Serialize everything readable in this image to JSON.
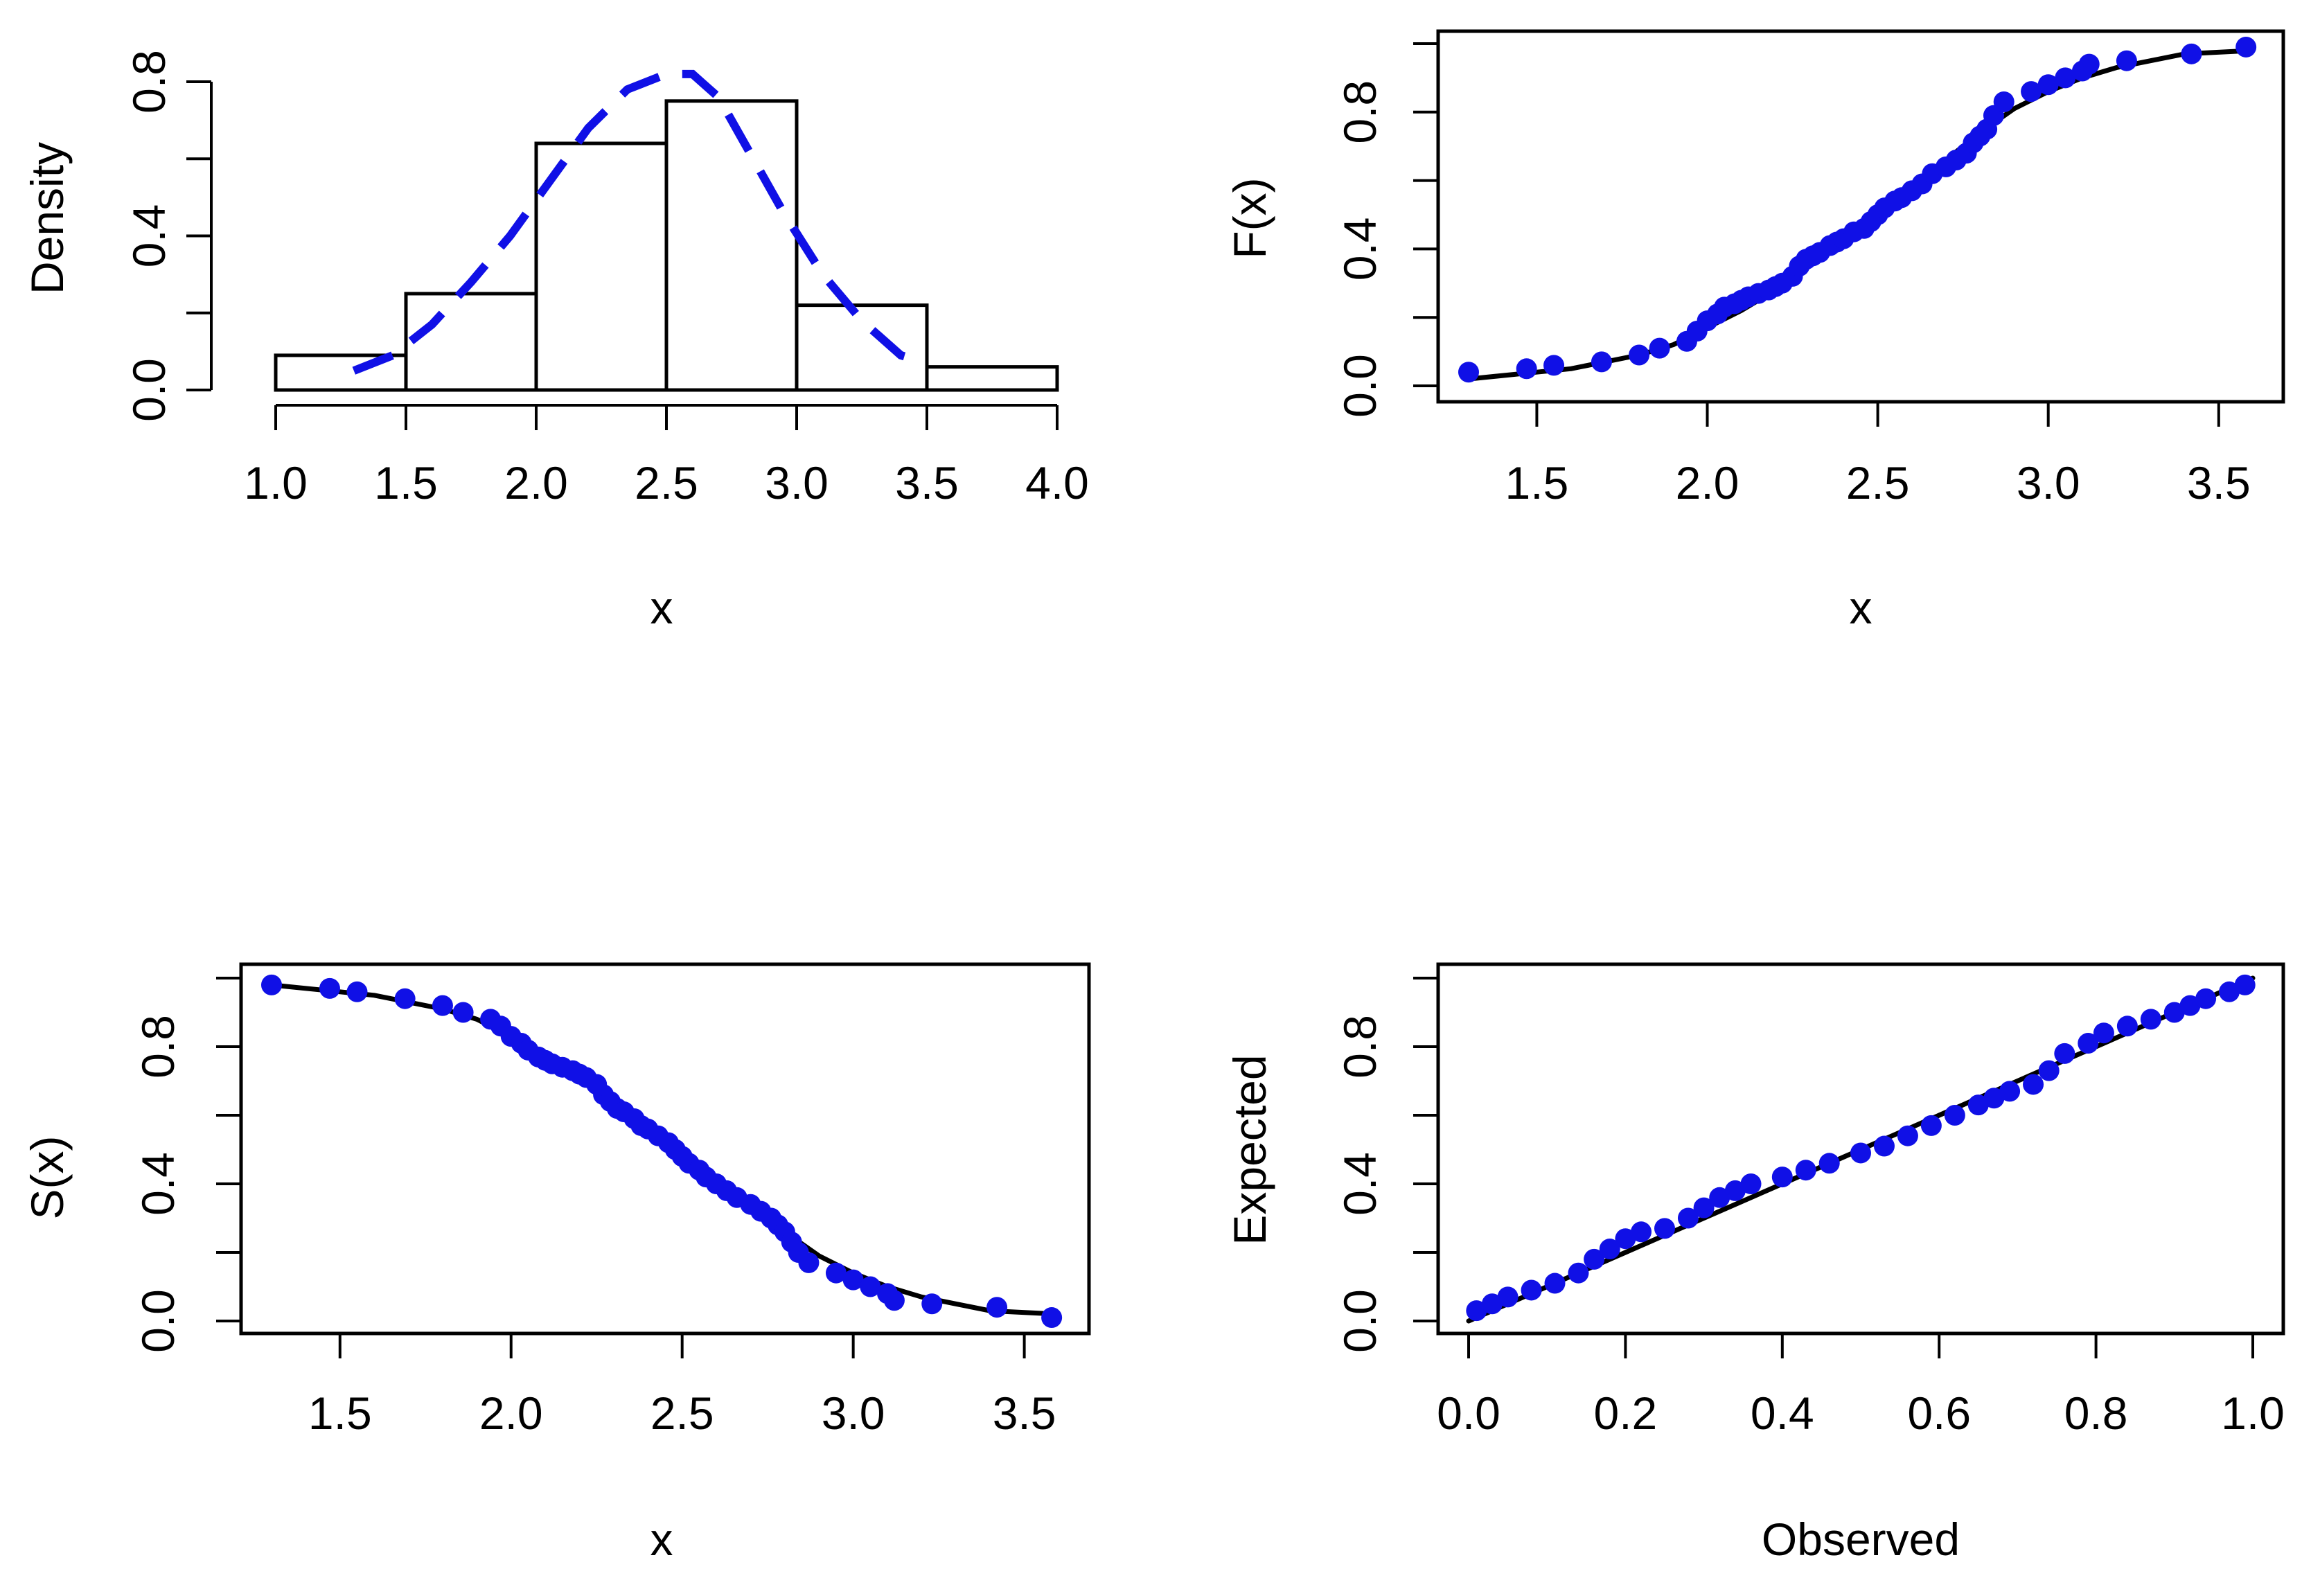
{
  "chart_data": [
    {
      "id": "hist",
      "type": "bar",
      "xlabel": "x",
      "ylabel": "Density",
      "xlim": [
        1.0,
        4.0
      ],
      "ylim": [
        0.0,
        0.8
      ],
      "xticks": [
        "1.0",
        "1.5",
        "2.0",
        "2.5",
        "3.0",
        "3.5",
        "4.0"
      ],
      "yticks": [
        "0.0",
        "0.4",
        "0.8"
      ],
      "bins": [
        [
          1.0,
          1.5
        ],
        [
          1.5,
          2.0
        ],
        [
          2.0,
          2.5
        ],
        [
          2.5,
          3.0
        ],
        [
          3.0,
          3.5
        ],
        [
          3.5,
          4.0
        ]
      ],
      "values": [
        0.09,
        0.25,
        0.64,
        0.75,
        0.22,
        0.06
      ],
      "density_curve": {
        "style": "dashed",
        "color": "#1010e6",
        "x": [
          1.3,
          1.45,
          1.6,
          1.75,
          1.9,
          2.05,
          2.2,
          2.35,
          2.5,
          2.6,
          2.7,
          2.8,
          2.95,
          3.1,
          3.25,
          3.4,
          3.5
        ],
        "y": [
          0.05,
          0.09,
          0.17,
          0.28,
          0.4,
          0.54,
          0.68,
          0.78,
          0.82,
          0.82,
          0.76,
          0.64,
          0.46,
          0.3,
          0.18,
          0.09,
          0.07
        ]
      }
    },
    {
      "id": "cdf",
      "type": "scatter",
      "xlabel": "x",
      "ylabel": "F(x)",
      "xlim": [
        1.3,
        3.6
      ],
      "ylim": [
        0.0,
        1.0
      ],
      "xticks": [
        "1.5",
        "2.0",
        "2.5",
        "3.0",
        "3.5"
      ],
      "yticks": [
        "0.0",
        "0.4",
        "0.8"
      ],
      "point_color": "#1010e6",
      "points": {
        "x": [
          1.3,
          1.47,
          1.55,
          1.69,
          1.8,
          1.86,
          1.94,
          1.97,
          2.0,
          2.03,
          2.05,
          2.08,
          2.1,
          2.12,
          2.15,
          2.18,
          2.2,
          2.22,
          2.25,
          2.27,
          2.29,
          2.31,
          2.33,
          2.36,
          2.38,
          2.4,
          2.43,
          2.46,
          2.48,
          2.5,
          2.52,
          2.55,
          2.57,
          2.6,
          2.63,
          2.66,
          2.7,
          2.73,
          2.76,
          2.78,
          2.8,
          2.82,
          2.84,
          2.87,
          2.95,
          3.0,
          3.05,
          3.1,
          3.12,
          3.23,
          3.42,
          3.58
        ],
        "y": [
          0.04,
          0.05,
          0.06,
          0.07,
          0.09,
          0.11,
          0.13,
          0.16,
          0.19,
          0.21,
          0.23,
          0.24,
          0.25,
          0.26,
          0.27,
          0.28,
          0.29,
          0.3,
          0.32,
          0.35,
          0.37,
          0.38,
          0.39,
          0.41,
          0.42,
          0.43,
          0.45,
          0.46,
          0.48,
          0.5,
          0.52,
          0.54,
          0.55,
          0.57,
          0.59,
          0.62,
          0.64,
          0.66,
          0.68,
          0.71,
          0.73,
          0.75,
          0.79,
          0.83,
          0.86,
          0.88,
          0.9,
          0.92,
          0.94,
          0.95,
          0.97,
          0.99
        ]
      },
      "fit_curve": {
        "x": [
          1.3,
          1.5,
          1.6,
          1.7,
          1.8,
          1.9,
          2.0,
          2.1,
          2.2,
          2.3,
          2.4,
          2.5,
          2.6,
          2.7,
          2.8,
          2.9,
          3.0,
          3.1,
          3.2,
          3.3,
          3.4,
          3.6
        ],
        "y": [
          0.02,
          0.04,
          0.05,
          0.07,
          0.09,
          0.12,
          0.17,
          0.22,
          0.28,
          0.35,
          0.42,
          0.5,
          0.58,
          0.66,
          0.74,
          0.81,
          0.86,
          0.9,
          0.93,
          0.95,
          0.97,
          0.98
        ]
      }
    },
    {
      "id": "surv",
      "type": "scatter",
      "xlabel": "x",
      "ylabel": "S(x)",
      "xlim": [
        1.3,
        3.6
      ],
      "ylim": [
        0.0,
        1.0
      ],
      "xticks": [
        "1.5",
        "2.0",
        "2.5",
        "3.0",
        "3.5"
      ],
      "yticks": [
        "0.0",
        "0.4",
        "0.8"
      ],
      "point_color": "#1010e6",
      "points": {
        "x": [
          1.3,
          1.47,
          1.55,
          1.69,
          1.8,
          1.86,
          1.94,
          1.97,
          2.0,
          2.03,
          2.05,
          2.08,
          2.1,
          2.12,
          2.15,
          2.18,
          2.2,
          2.22,
          2.25,
          2.27,
          2.29,
          2.31,
          2.33,
          2.36,
          2.38,
          2.4,
          2.43,
          2.46,
          2.48,
          2.5,
          2.52,
          2.55,
          2.57,
          2.6,
          2.63,
          2.66,
          2.7,
          2.73,
          2.76,
          2.78,
          2.8,
          2.82,
          2.84,
          2.87,
          2.95,
          3.0,
          3.05,
          3.1,
          3.12,
          3.23,
          3.42,
          3.58
        ],
        "y": [
          0.98,
          0.97,
          0.96,
          0.94,
          0.92,
          0.9,
          0.88,
          0.86,
          0.83,
          0.81,
          0.79,
          0.77,
          0.76,
          0.75,
          0.74,
          0.73,
          0.72,
          0.71,
          0.69,
          0.66,
          0.64,
          0.62,
          0.61,
          0.59,
          0.57,
          0.56,
          0.54,
          0.52,
          0.5,
          0.48,
          0.46,
          0.44,
          0.42,
          0.4,
          0.38,
          0.36,
          0.34,
          0.32,
          0.3,
          0.28,
          0.26,
          0.23,
          0.2,
          0.17,
          0.14,
          0.12,
          0.1,
          0.08,
          0.06,
          0.05,
          0.04,
          0.01
        ]
      },
      "fit_curve": {
        "x": [
          1.3,
          1.5,
          1.6,
          1.7,
          1.8,
          1.9,
          2.0,
          2.1,
          2.2,
          2.3,
          2.4,
          2.5,
          2.6,
          2.7,
          2.8,
          2.9,
          3.0,
          3.1,
          3.2,
          3.3,
          3.4,
          3.6
        ],
        "y": [
          0.98,
          0.96,
          0.95,
          0.93,
          0.91,
          0.88,
          0.83,
          0.78,
          0.72,
          0.65,
          0.58,
          0.5,
          0.42,
          0.34,
          0.26,
          0.19,
          0.14,
          0.1,
          0.07,
          0.05,
          0.03,
          0.02
        ]
      }
    },
    {
      "id": "pp",
      "type": "scatter",
      "xlabel": "Observed",
      "ylabel": "Expected",
      "xlim": [
        0.0,
        1.0
      ],
      "ylim": [
        0.0,
        1.0
      ],
      "xticks": [
        "0.0",
        "0.2",
        "0.4",
        "0.6",
        "0.8",
        "1.0"
      ],
      "yticks": [
        "0.0",
        "0.4",
        "0.8"
      ],
      "point_color": "#1010e6",
      "points": {
        "x": [
          0.01,
          0.03,
          0.05,
          0.08,
          0.11,
          0.14,
          0.16,
          0.18,
          0.2,
          0.22,
          0.25,
          0.28,
          0.3,
          0.32,
          0.34,
          0.36,
          0.4,
          0.43,
          0.46,
          0.5,
          0.53,
          0.56,
          0.59,
          0.62,
          0.65,
          0.67,
          0.69,
          0.72,
          0.74,
          0.76,
          0.79,
          0.81,
          0.84,
          0.87,
          0.9,
          0.92,
          0.94,
          0.97,
          0.99
        ],
        "y": [
          0.03,
          0.05,
          0.07,
          0.09,
          0.11,
          0.14,
          0.18,
          0.21,
          0.24,
          0.26,
          0.27,
          0.3,
          0.33,
          0.36,
          0.38,
          0.4,
          0.42,
          0.44,
          0.46,
          0.49,
          0.51,
          0.54,
          0.57,
          0.6,
          0.63,
          0.65,
          0.67,
          0.69,
          0.73,
          0.78,
          0.81,
          0.84,
          0.86,
          0.88,
          0.9,
          0.92,
          0.94,
          0.96,
          0.98
        ]
      },
      "fit_curve": {
        "x": [
          0.0,
          0.2,
          0.4,
          0.6,
          0.8,
          1.0
        ],
        "y": [
          0.0,
          0.2,
          0.4,
          0.6,
          0.8,
          1.0
        ]
      }
    }
  ]
}
